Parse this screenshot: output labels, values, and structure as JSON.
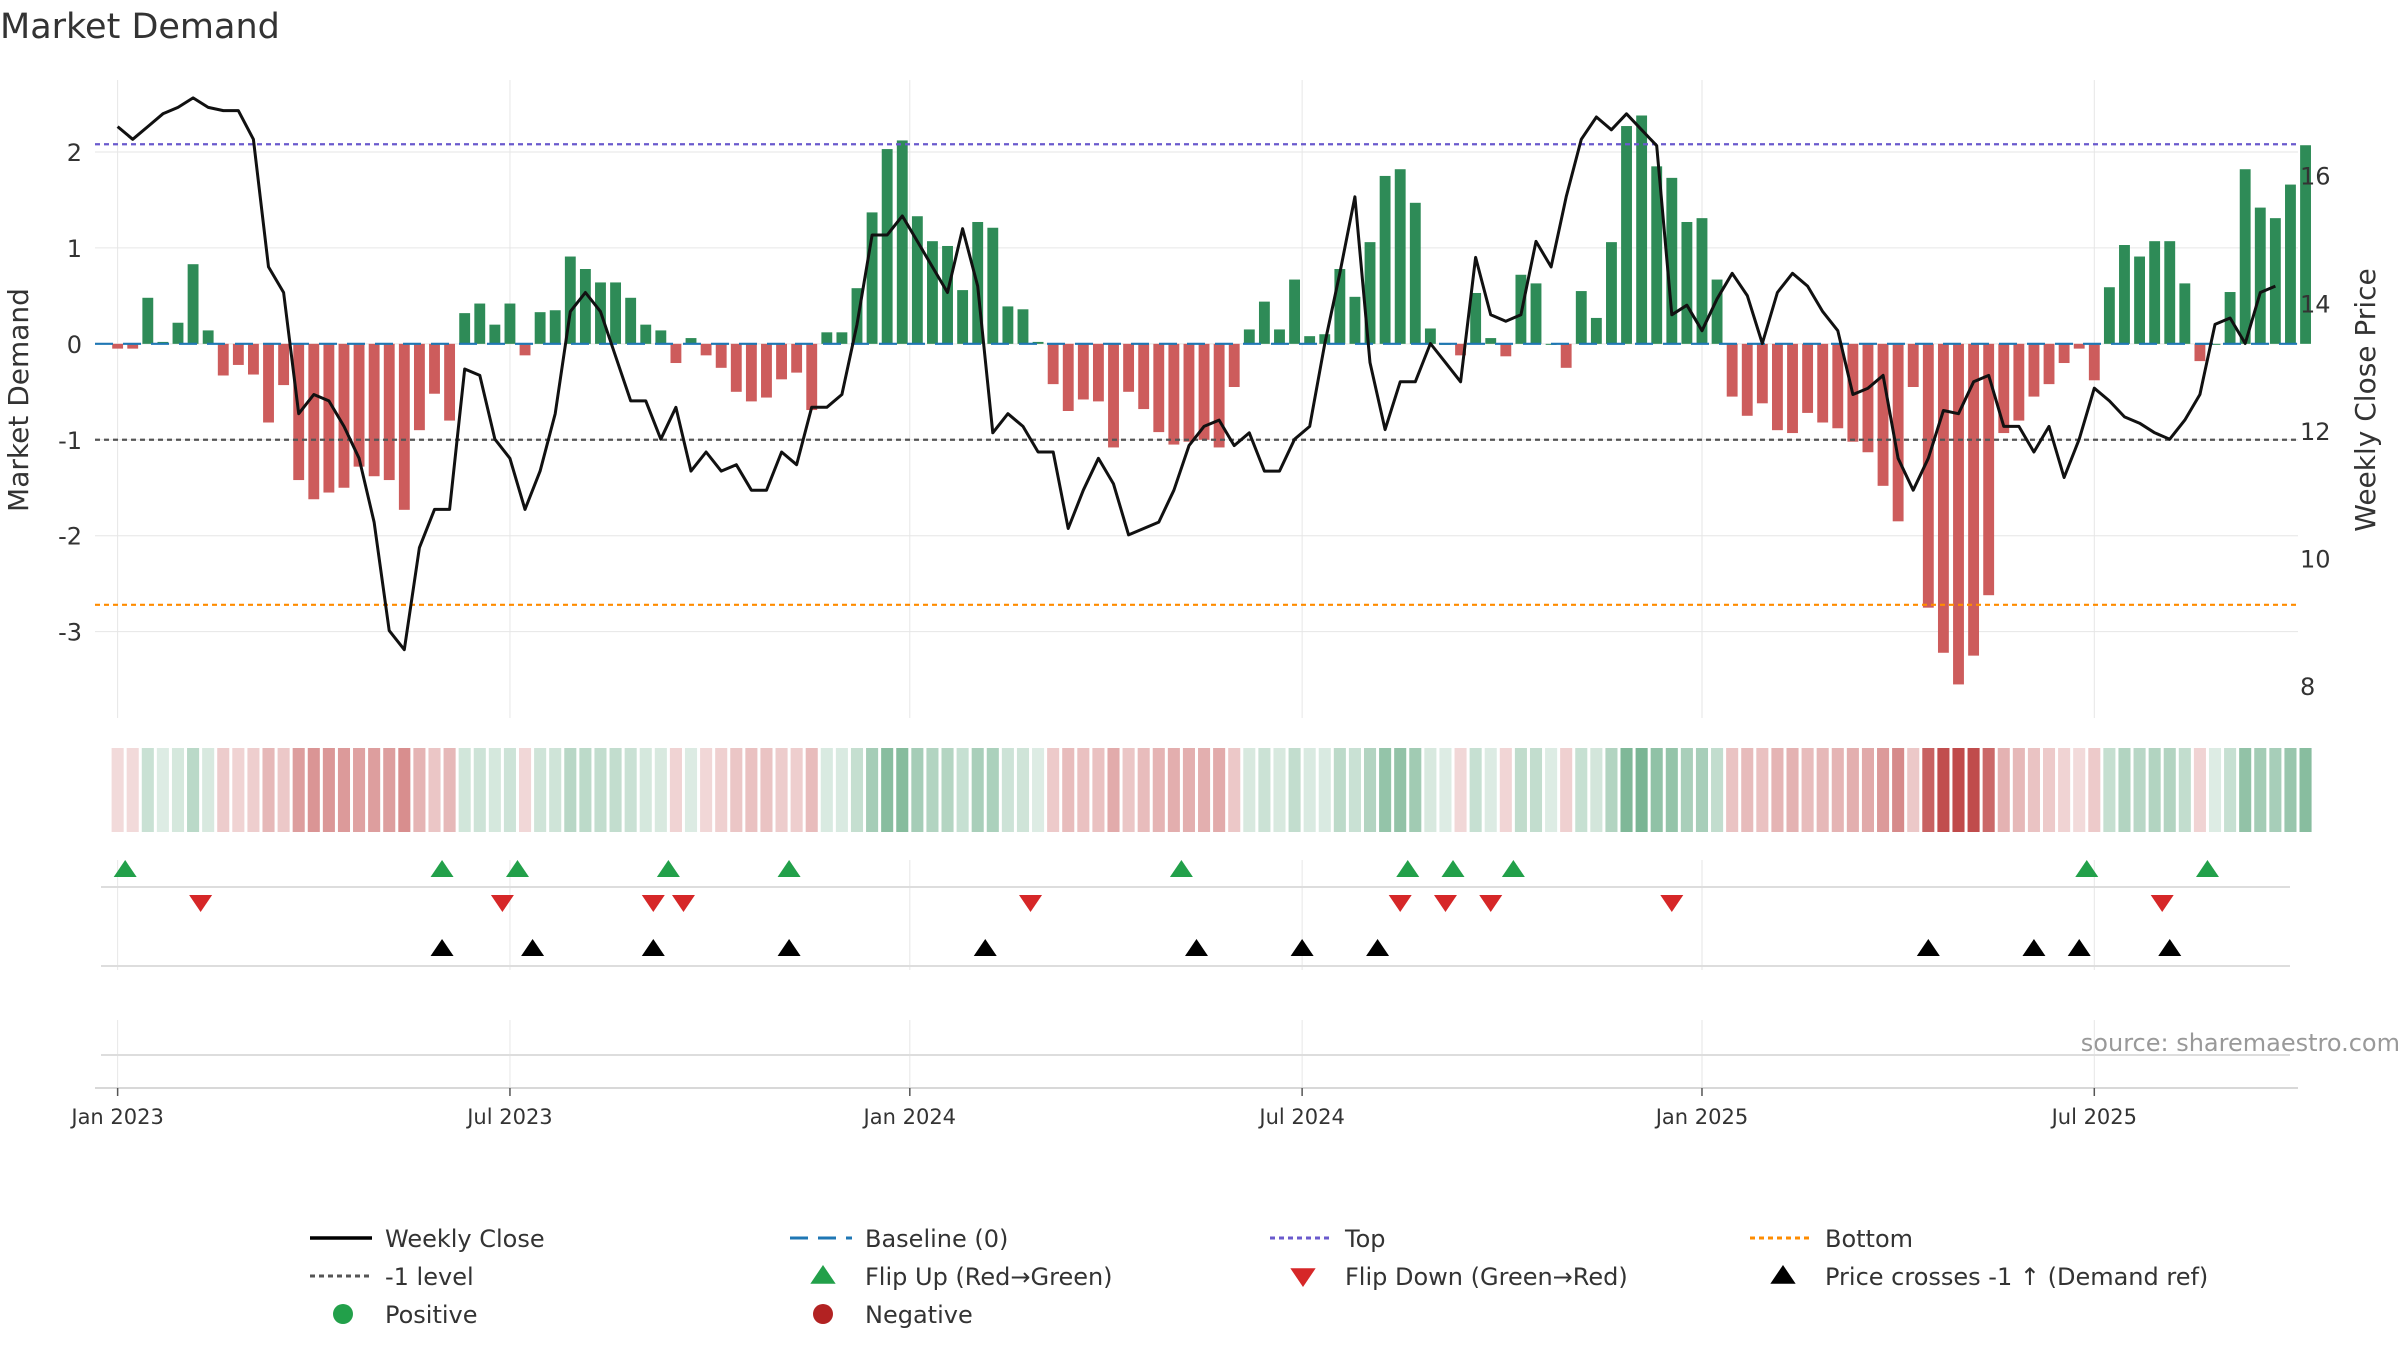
{
  "chart_data": {
    "type": "bar",
    "title": "Market Demand",
    "ylabel_left": "Market Demand",
    "ylabel_right": "Weekly Close Price",
    "ylim_left": [
      -3.9,
      2.75
    ],
    "ylim_right": [
      7.5,
      17.5
    ],
    "left_ticks": [
      2,
      1,
      0,
      -1,
      -2,
      -3
    ],
    "right_ticks": [
      16,
      14,
      12,
      10,
      8
    ],
    "x_range": [
      -1.5,
      144.5
    ],
    "x_ticks": [
      {
        "label": "Jan 2023",
        "week": 0
      },
      {
        "label": "Jul 2023",
        "week": 26
      },
      {
        "label": "Jan 2024",
        "week": 52.5
      },
      {
        "label": "Jul 2024",
        "week": 78.5
      },
      {
        "label": "Jan 2025",
        "week": 105
      },
      {
        "label": "Jul 2025",
        "week": 131
      }
    ],
    "reference_lines": {
      "top": 2.08,
      "bottom": -2.72,
      "minus_one": -1,
      "baseline": 0
    },
    "demand": [
      -0.05,
      -0.05,
      0.48,
      0.02,
      0.22,
      0.83,
      0.14,
      -0.33,
      -0.22,
      -0.32,
      -0.82,
      -0.43,
      -1.42,
      -1.62,
      -1.55,
      -1.5,
      -1.28,
      -1.38,
      -1.42,
      -1.73,
      -0.9,
      -0.52,
      -0.8,
      0.32,
      0.42,
      0.2,
      0.42,
      -0.12,
      0.33,
      0.35,
      0.91,
      0.78,
      0.64,
      0.64,
      0.48,
      0.2,
      0.14,
      -0.2,
      0.06,
      -0.12,
      -0.25,
      -0.5,
      -0.6,
      -0.56,
      -0.37,
      -0.3,
      -0.69,
      0.12,
      0.12,
      0.58,
      1.37,
      2.03,
      2.12,
      1.33,
      1.07,
      1.02,
      0.56,
      1.27,
      1.21,
      0.39,
      0.36,
      0.02,
      -0.42,
      -0.7,
      -0.58,
      -0.6,
      -1.08,
      -0.5,
      -0.68,
      -0.92,
      -1.05,
      -1.02,
      -1.0,
      -1.08,
      -0.45,
      0.15,
      0.44,
      0.15,
      0.67,
      0.08,
      0.1,
      0.78,
      0.49,
      1.06,
      1.75,
      1.82,
      1.47,
      0.16,
      0.0,
      -0.12,
      0.53,
      0.06,
      -0.13,
      0.72,
      0.63,
      0.0,
      -0.25,
      0.55,
      0.27,
      1.06,
      2.27,
      2.38,
      1.85,
      1.73,
      1.27,
      1.31,
      0.67,
      -0.55,
      -0.75,
      -0.62,
      -0.9,
      -0.93,
      -0.72,
      -0.82,
      -0.88,
      -1.02,
      -1.13,
      -1.48,
      -1.85,
      -0.45,
      -2.75,
      -3.22,
      -3.55,
      -3.25,
      -2.62,
      -0.93,
      -0.8,
      -0.55,
      -0.42,
      -0.2,
      -0.05,
      -0.38,
      0.59,
      1.03,
      0.91,
      1.07,
      1.07,
      0.63,
      -0.18,
      0.0,
      0.54,
      1.82,
      1.42,
      1.31,
      1.66,
      2.07
    ],
    "weekly_close": [
      16.77,
      16.57,
      16.77,
      16.97,
      17.07,
      17.22,
      17.07,
      17.02,
      17.02,
      16.57,
      14.57,
      14.17,
      12.27,
      12.57,
      12.47,
      12.07,
      11.57,
      10.57,
      8.87,
      8.57,
      10.17,
      10.77,
      10.77,
      12.97,
      12.87,
      11.87,
      11.57,
      10.77,
      11.37,
      12.27,
      13.87,
      14.17,
      13.87,
      13.17,
      12.47,
      12.47,
      11.87,
      12.37,
      11.37,
      11.67,
      11.37,
      11.47,
      11.07,
      11.07,
      11.67,
      11.47,
      12.37,
      12.37,
      12.57,
      13.67,
      15.07,
      15.07,
      15.37,
      14.97,
      14.57,
      14.17,
      15.17,
      14.27,
      11.97,
      12.27,
      12.07,
      11.67,
      11.67,
      10.47,
      11.07,
      11.57,
      11.17,
      10.37,
      10.47,
      10.57,
      11.07,
      11.77,
      12.07,
      12.17,
      11.77,
      11.97,
      11.37,
      11.37,
      11.87,
      12.07,
      13.37,
      14.47,
      15.67,
      13.07,
      12.02,
      12.77,
      12.77,
      13.37,
      13.07,
      12.77,
      14.72,
      13.82,
      13.72,
      13.82,
      14.97,
      14.57,
      15.67,
      16.57,
      16.92,
      16.72,
      16.97,
      16.72,
      16.47,
      13.82,
      13.97,
      13.57,
      14.07,
      14.47,
      14.12,
      13.37,
      14.17,
      14.47,
      14.27,
      13.87,
      13.57,
      12.57,
      12.67,
      12.87,
      11.57,
      11.07,
      11.57,
      12.32,
      12.27,
      12.77,
      12.87,
      12.07,
      12.07,
      11.67,
      12.07,
      11.27,
      11.87,
      12.67,
      12.47,
      12.22,
      12.12,
      11.97,
      11.87,
      12.17,
      12.57,
      13.67,
      13.77,
      13.37,
      14.17,
      14.27
    ],
    "flip_up_weeks": [
      0.5,
      21.5,
      26.5,
      36.5,
      44.5,
      70.5,
      85.5,
      88.5,
      92.5,
      130.5,
      138.5
    ],
    "flip_down_weeks": [
      5.5,
      25.5,
      35.5,
      37.5,
      60.5,
      85,
      88,
      91,
      103,
      135.5
    ],
    "price_cross_weeks": [
      21.5,
      27.5,
      35.5,
      44.5,
      57.5,
      71.5,
      78.5,
      83.5,
      120,
      127,
      130,
      136
    ],
    "legend": [
      {
        "label": "Weekly Close",
        "symbol": "line",
        "color": "#000000"
      },
      {
        "label": "Baseline (0)",
        "symbol": "dash",
        "color": "#1f77b4"
      },
      {
        "label": "Top",
        "symbol": "dot",
        "color": "#6a5acd"
      },
      {
        "label": "Bottom",
        "symbol": "dot",
        "color": "#ff8c00"
      },
      {
        "label": "-1 level",
        "symbol": "dot",
        "color": "#555555"
      },
      {
        "label": "Flip Up (Red→Green)",
        "symbol": "tri-up",
        "color": "#22a04a"
      },
      {
        "label": "Flip Down (Green→Red)",
        "symbol": "tri-down",
        "color": "#d62728"
      },
      {
        "label": "Price crosses -1 ↑ (Demand ref)",
        "symbol": "tri-up",
        "color": "#000000"
      },
      {
        "label": "Positive",
        "symbol": "circle",
        "color": "#22a04a"
      },
      {
        "label": "Negative",
        "symbol": "circle",
        "color": "#b22222"
      }
    ],
    "source": "source: sharemaestro.com"
  },
  "colors": {
    "positive": "#2e8b57",
    "negative": "#cd5c5c",
    "heat_positive": "#2e8b57",
    "heat_negative": "#b22222",
    "grid": "#e6e6e6"
  }
}
